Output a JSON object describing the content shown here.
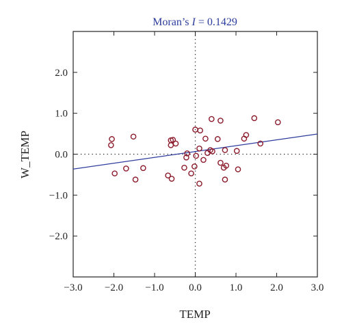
{
  "chart_data": {
    "type": "scatter",
    "title": {
      "prefix": "Moran’s ",
      "symbol": "I",
      "suffix": " = 0.1429"
    },
    "xlabel": "TEMP",
    "ylabel": "W_TEMP",
    "xlim": [
      -3.0,
      3.0
    ],
    "ylim": [
      -3.0,
      3.0
    ],
    "x_ticks": [
      -3.0,
      -2.0,
      -1.0,
      0.0,
      1.0,
      2.0,
      3.0
    ],
    "x_tick_labels": [
      "−3.0",
      "−2.0",
      "−1.0",
      "0.0",
      "1.0",
      "2.0",
      "3.0"
    ],
    "y_ticks": [
      -2.0,
      -1.0,
      0.0,
      1.0,
      2.0
    ],
    "y_tick_labels": [
      "−2.0",
      "−1.0",
      "0.0",
      "1.0",
      "2.0"
    ],
    "grid": false,
    "reference_lines": {
      "x": 0,
      "y": 0,
      "style": "dotted"
    },
    "regression_line": {
      "slope": 0.1429,
      "intercept": 0.065,
      "color": "#2b3b9c"
    },
    "marker": {
      "shape": "open-circle",
      "color": "#8b1a2b"
    },
    "title_color": "#2b3b9c",
    "points": [
      {
        "x": -2.05,
        "y": 0.37
      },
      {
        "x": -2.07,
        "y": 0.22
      },
      {
        "x": -1.98,
        "y": -0.47
      },
      {
        "x": -1.7,
        "y": -0.35
      },
      {
        "x": -1.52,
        "y": 0.43
      },
      {
        "x": -1.47,
        "y": -0.62
      },
      {
        "x": -1.28,
        "y": -0.34
      },
      {
        "x": -0.67,
        "y": -0.52
      },
      {
        "x": -0.6,
        "y": 0.34
      },
      {
        "x": -0.6,
        "y": 0.22
      },
      {
        "x": -0.55,
        "y": 0.35
      },
      {
        "x": -0.58,
        "y": -0.6
      },
      {
        "x": -0.48,
        "y": 0.26
      },
      {
        "x": -0.27,
        "y": -0.33
      },
      {
        "x": -0.22,
        "y": -0.08
      },
      {
        "x": -0.2,
        "y": 0.02
      },
      {
        "x": -0.1,
        "y": -0.47
      },
      {
        "x": -0.02,
        "y": -0.3
      },
      {
        "x": 0.0,
        "y": 0.6
      },
      {
        "x": 0.02,
        "y": -0.04
      },
      {
        "x": 0.1,
        "y": 0.14
      },
      {
        "x": 0.12,
        "y": 0.58
      },
      {
        "x": 0.1,
        "y": -0.72
      },
      {
        "x": 0.2,
        "y": -0.14
      },
      {
        "x": 0.25,
        "y": 0.38
      },
      {
        "x": 0.3,
        "y": 0.03
      },
      {
        "x": 0.37,
        "y": 0.1
      },
      {
        "x": 0.4,
        "y": 0.86
      },
      {
        "x": 0.42,
        "y": 0.07
      },
      {
        "x": 0.55,
        "y": 0.37
      },
      {
        "x": 0.62,
        "y": 0.82
      },
      {
        "x": 0.62,
        "y": -0.21
      },
      {
        "x": 0.7,
        "y": -0.33
      },
      {
        "x": 0.73,
        "y": 0.1
      },
      {
        "x": 0.73,
        "y": -0.62
      },
      {
        "x": 0.76,
        "y": -0.28
      },
      {
        "x": 1.02,
        "y": 0.08
      },
      {
        "x": 1.05,
        "y": -0.37
      },
      {
        "x": 1.2,
        "y": 0.38
      },
      {
        "x": 1.25,
        "y": 0.47
      },
      {
        "x": 1.45,
        "y": 0.88
      },
      {
        "x": 1.6,
        "y": 0.26
      },
      {
        "x": 2.03,
        "y": 0.78
      }
    ]
  }
}
